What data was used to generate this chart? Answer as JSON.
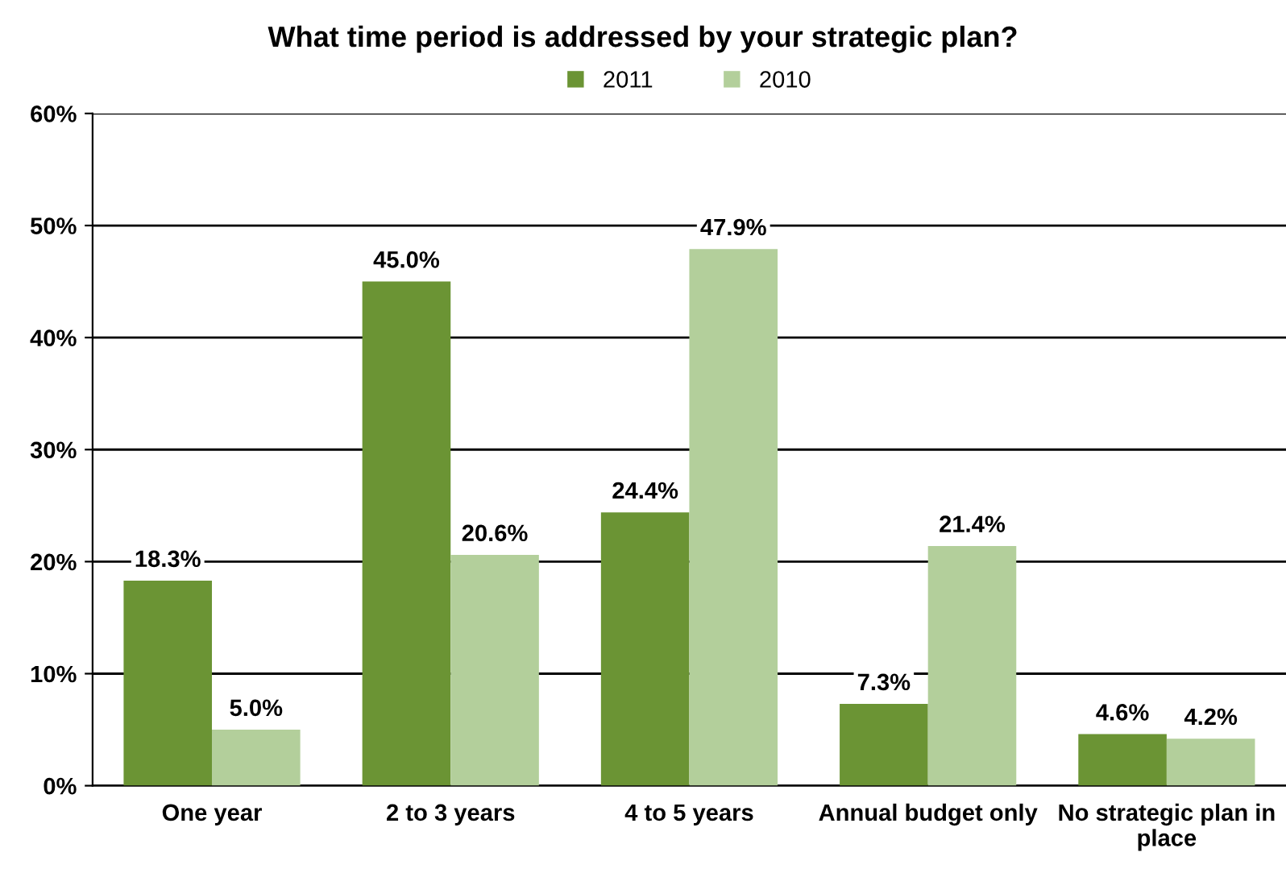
{
  "chart_data": {
    "type": "bar",
    "title": "What time period is addressed by your strategic plan?",
    "categories": [
      "One year",
      "2 to 3 years",
      "4 to 5 years",
      "Annual budget only",
      "No strategic plan in\nplace"
    ],
    "series": [
      {
        "name": "2011",
        "color": "#6b9434",
        "values": [
          18.3,
          45.0,
          24.4,
          7.3,
          4.6
        ],
        "value_labels": [
          "18.3%",
          "45.0%",
          "24.4%",
          "7.3%",
          "4.6%"
        ]
      },
      {
        "name": "2010",
        "color": "#b3cf9b",
        "values": [
          5.0,
          20.6,
          47.9,
          21.4,
          4.2
        ],
        "value_labels": [
          "5.0%",
          "20.6%",
          "47.9%",
          "21.4%",
          "4.2%"
        ]
      }
    ],
    "ylim": [
      0,
      60
    ],
    "yticks": [
      {
        "value": 0,
        "label": "0%"
      },
      {
        "value": 10,
        "label": "10%"
      },
      {
        "value": 20,
        "label": "20%"
      },
      {
        "value": 30,
        "label": "30%"
      },
      {
        "value": 40,
        "label": "40%"
      },
      {
        "value": 50,
        "label": "50%"
      },
      {
        "value": 60,
        "label": "60%"
      }
    ],
    "grid": "y",
    "legend": "top"
  }
}
